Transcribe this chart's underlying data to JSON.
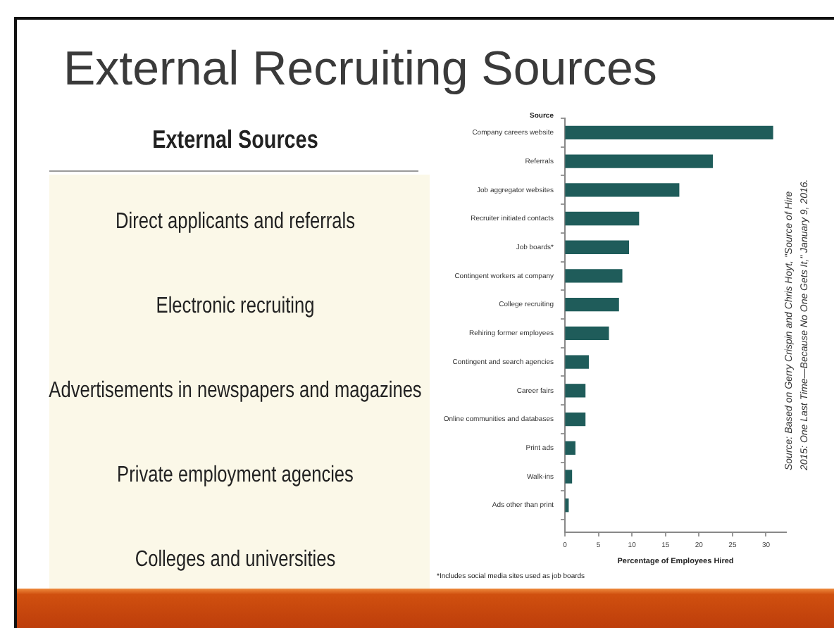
{
  "chart_data": [
    {
      "type": "other",
      "title": "External Recruiting Sources",
      "subtitle": "External Sources",
      "annotations": [
        "Direct applicants and referrals",
        "Electronic recruiting",
        "Advertisements in newspapers and magazines",
        "Private employment agencies",
        "Colleges and universities"
      ]
    },
    {
      "type": "bar",
      "orientation": "horizontal",
      "ylabel": "Source",
      "xlabel": "Percentage of Employees Hired",
      "categories": [
        "Company careers website",
        "Referrals",
        "Job aggregator websites",
        "Recruiter initiated contacts",
        "Job boards*",
        "Contingent workers at company",
        "College recruiting",
        "Rehiring former employees",
        "Contingent and search agencies",
        "Career fairs",
        "Online communities and databases",
        "Print ads",
        "Walk-ins",
        "Ads other than print"
      ],
      "values": [
        31,
        22,
        17,
        11,
        9.5,
        8.5,
        8,
        6.5,
        3.5,
        3,
        3,
        1.5,
        1,
        0.5
      ],
      "color": "#1f5c5a",
      "xlim": [
        0,
        33
      ],
      "xticks": [
        0,
        5,
        10,
        15,
        20,
        25,
        30
      ],
      "annotations": [
        "*Includes social media sites used as job boards",
        "Source: Based on Gerry Crispin and Chris Hoyt, \"Source of Hire 2015: One Last Time—Because No One Gets It,\" January 9, 2016."
      ]
    }
  ]
}
